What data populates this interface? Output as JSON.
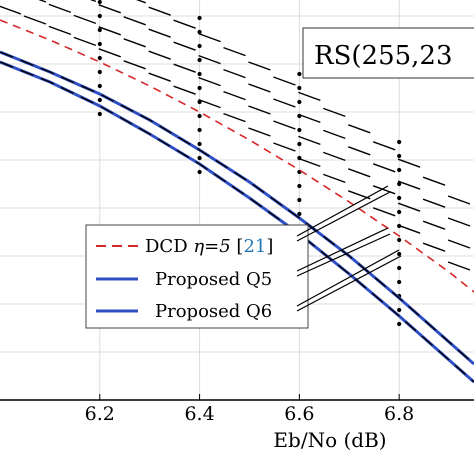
{
  "chart_data": {
    "type": "line",
    "code_label": "RS(255,23",
    "xlabel": "Eb/No (dB)",
    "ylabel": "",
    "xlim": [
      6.0,
      6.95
    ],
    "ylim": [
      0,
      1
    ],
    "x_ticks": [
      6.2,
      6.4,
      6.6,
      6.8
    ],
    "x_tick_labels": [
      "6.2",
      "6.4",
      "6.6",
      "6.8"
    ],
    "y_grid_values": [
      0.12,
      0.24,
      0.36,
      0.48,
      0.6,
      0.72,
      0.84,
      0.96
    ],
    "grid": true,
    "legend_position": "center",
    "legend": [
      {
        "label_prefix": "DCD ",
        "label_eta": "η=5 ",
        "label_bracket_open": "[",
        "label_ref": "21",
        "label_bracket_close": "]",
        "color": "#d62728",
        "style": "dashed"
      },
      {
        "label": "Proposed Q5",
        "color": "#2f4fc4",
        "style": "solid"
      },
      {
        "label": "Proposed Q6",
        "color": "#2f4fc4",
        "style": "solid"
      }
    ],
    "series": [
      {
        "name": "DCD η=5 [21]",
        "color": "#d62728",
        "style": "dashed",
        "x": [
          6.0,
          6.1,
          6.2,
          6.3,
          6.4,
          6.5,
          6.6,
          6.7,
          6.8,
          6.9,
          6.95
        ],
        "y": [
          0.95,
          0.9,
          0.845,
          0.785,
          0.72,
          0.65,
          0.575,
          0.495,
          0.41,
          0.32,
          0.27
        ]
      },
      {
        "name": "Proposed Q5",
        "color": "#2f4fc4",
        "style": "solid",
        "x": [
          6.0,
          6.1,
          6.2,
          6.3,
          6.4,
          6.5,
          6.6,
          6.7,
          6.8,
          6.9,
          6.95
        ],
        "y": [
          0.87,
          0.82,
          0.765,
          0.7,
          0.625,
          0.545,
          0.455,
          0.36,
          0.255,
          0.145,
          0.09
        ]
      },
      {
        "name": "Proposed Q6",
        "color": "#2f4fc4",
        "style": "solid",
        "x": [
          6.0,
          6.1,
          6.2,
          6.3,
          6.4,
          6.5,
          6.6,
          6.7,
          6.8,
          6.9,
          6.95
        ],
        "y": [
          0.845,
          0.795,
          0.735,
          0.665,
          0.59,
          0.505,
          0.415,
          0.315,
          0.21,
          0.1,
          0.045
        ]
      }
    ],
    "dotted_x": [
      6.2,
      6.4,
      6.6,
      6.8
    ]
  }
}
